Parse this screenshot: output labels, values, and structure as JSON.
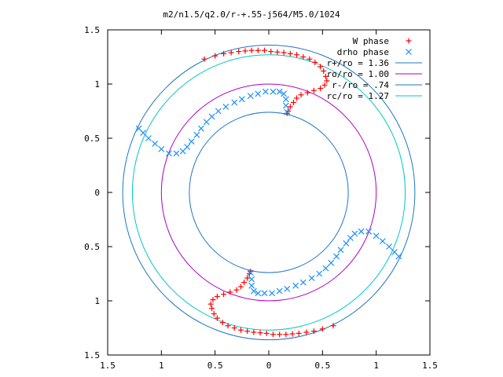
{
  "chart_data": {
    "type": "scatter",
    "title": "m2/n1.5/q2.0/r-+.55-j564/M5.0/1024",
    "xlabel": "",
    "ylabel": "",
    "xlim": [
      -1.5,
      1.5
    ],
    "ylim": [
      -1.5,
      1.5
    ],
    "grid": false,
    "legend_position": "top-right",
    "x_ticks": [
      {
        "value": -1.5,
        "label": "1.5"
      },
      {
        "value": -1.0,
        "label": "1"
      },
      {
        "value": -0.5,
        "label": "0.5"
      },
      {
        "value": 0,
        "label": "0"
      },
      {
        "value": 0.5,
        "label": "0.5"
      },
      {
        "value": 1.0,
        "label": "1"
      },
      {
        "value": 1.5,
        "label": "1.5"
      }
    ],
    "y_ticks": [
      {
        "value": 1.5,
        "label": "1.5"
      },
      {
        "value": 1.0,
        "label": "1"
      },
      {
        "value": 0.5,
        "label": "0.5"
      },
      {
        "value": 0,
        "label": "0"
      },
      {
        "value": -0.5,
        "label": "0.5"
      },
      {
        "value": -1.0,
        "label": "1"
      },
      {
        "value": -1.5,
        "label": "1.5"
      }
    ],
    "series": [
      {
        "name": "W phase",
        "marker": "plus",
        "color": "#ff0000",
        "points": [
          [
            -0.6,
            1.23
          ],
          [
            -0.5,
            1.26
          ],
          [
            -0.42,
            1.28
          ],
          [
            -0.35,
            1.29
          ],
          [
            -0.28,
            1.3
          ],
          [
            -0.22,
            1.305
          ],
          [
            -0.16,
            1.31
          ],
          [
            -0.1,
            1.31
          ],
          [
            -0.04,
            1.31
          ],
          [
            0.02,
            1.3
          ],
          [
            0.08,
            1.295
          ],
          [
            0.14,
            1.29
          ],
          [
            0.2,
            1.28
          ],
          [
            0.26,
            1.27
          ],
          [
            0.32,
            1.25
          ],
          [
            0.38,
            1.23
          ],
          [
            0.43,
            1.2
          ],
          [
            0.48,
            1.16
          ],
          [
            0.51,
            1.12
          ],
          [
            0.53,
            1.07
          ],
          [
            0.54,
            1.03
          ],
          [
            0.52,
            0.99
          ],
          [
            0.48,
            0.96
          ],
          [
            0.42,
            0.94
          ],
          [
            0.36,
            0.92
          ],
          [
            0.3,
            0.9
          ],
          [
            0.26,
            0.87
          ],
          [
            0.23,
            0.83
          ],
          [
            0.2,
            0.79
          ],
          [
            0.18,
            0.75
          ],
          [
            0.17,
            0.73
          ],
          [
            0.6,
            -1.23
          ],
          [
            0.5,
            -1.26
          ],
          [
            0.42,
            -1.28
          ],
          [
            0.35,
            -1.29
          ],
          [
            0.28,
            -1.3
          ],
          [
            0.22,
            -1.305
          ],
          [
            0.16,
            -1.31
          ],
          [
            0.1,
            -1.31
          ],
          [
            0.04,
            -1.31
          ],
          [
            -0.02,
            -1.3
          ],
          [
            -0.08,
            -1.295
          ],
          [
            -0.14,
            -1.29
          ],
          [
            -0.2,
            -1.28
          ],
          [
            -0.26,
            -1.27
          ],
          [
            -0.32,
            -1.25
          ],
          [
            -0.38,
            -1.23
          ],
          [
            -0.43,
            -1.2
          ],
          [
            -0.48,
            -1.16
          ],
          [
            -0.51,
            -1.12
          ],
          [
            -0.53,
            -1.07
          ],
          [
            -0.54,
            -1.03
          ],
          [
            -0.52,
            -0.99
          ],
          [
            -0.48,
            -0.96
          ],
          [
            -0.42,
            -0.94
          ],
          [
            -0.36,
            -0.92
          ],
          [
            -0.3,
            -0.9
          ],
          [
            -0.26,
            -0.87
          ],
          [
            -0.23,
            -0.83
          ],
          [
            -0.2,
            -0.79
          ],
          [
            -0.18,
            -0.75
          ],
          [
            -0.17,
            -0.73
          ]
        ]
      },
      {
        "name": "drho phase",
        "marker": "cross",
        "color": "#1e90ff",
        "points": [
          [
            0.17,
            0.74
          ],
          [
            0.16,
            0.8
          ],
          [
            0.16,
            0.86
          ],
          [
            0.14,
            0.91
          ],
          [
            0.1,
            0.93
          ],
          [
            0.04,
            0.93
          ],
          [
            -0.03,
            0.93
          ],
          [
            -0.1,
            0.91
          ],
          [
            -0.17,
            0.89
          ],
          [
            -0.25,
            0.86
          ],
          [
            -0.32,
            0.83
          ],
          [
            -0.4,
            0.79
          ],
          [
            -0.47,
            0.75
          ],
          [
            -0.53,
            0.7
          ],
          [
            -0.58,
            0.65
          ],
          [
            -0.63,
            0.59
          ],
          [
            -0.67,
            0.53
          ],
          [
            -0.72,
            0.47
          ],
          [
            -0.76,
            0.42
          ],
          [
            -0.8,
            0.38
          ],
          [
            -0.86,
            0.36
          ],
          [
            -0.93,
            0.36
          ],
          [
            -1.0,
            0.4
          ],
          [
            -1.06,
            0.45
          ],
          [
            -1.12,
            0.5
          ],
          [
            -1.17,
            0.55
          ],
          [
            -1.21,
            0.59
          ],
          [
            -0.17,
            -0.74
          ],
          [
            -0.16,
            -0.8
          ],
          [
            -0.16,
            -0.86
          ],
          [
            -0.14,
            -0.91
          ],
          [
            -0.1,
            -0.93
          ],
          [
            -0.04,
            -0.93
          ],
          [
            0.03,
            -0.93
          ],
          [
            0.1,
            -0.91
          ],
          [
            0.17,
            -0.89
          ],
          [
            0.25,
            -0.86
          ],
          [
            0.32,
            -0.83
          ],
          [
            0.4,
            -0.79
          ],
          [
            0.47,
            -0.75
          ],
          [
            0.53,
            -0.7
          ],
          [
            0.58,
            -0.65
          ],
          [
            0.63,
            -0.59
          ],
          [
            0.67,
            -0.53
          ],
          [
            0.72,
            -0.47
          ],
          [
            0.76,
            -0.42
          ],
          [
            0.8,
            -0.38
          ],
          [
            0.86,
            -0.36
          ],
          [
            0.93,
            -0.36
          ],
          [
            1.0,
            -0.4
          ],
          [
            1.06,
            -0.45
          ],
          [
            1.12,
            -0.5
          ],
          [
            1.17,
            -0.55
          ],
          [
            1.21,
            -0.59
          ]
        ]
      }
    ],
    "circles": [
      {
        "name": "r+/ro = 1.36",
        "radius": 1.36,
        "color": "#1f77c4"
      },
      {
        "name": "ro/ro = 1.00",
        "radius": 1.0,
        "color": "#b000c0"
      },
      {
        "name": "r-/ro = .74",
        "radius": 0.74,
        "color": "#1f77c4"
      },
      {
        "name": "rc/ro = 1.27",
        "radius": 1.27,
        "color": "#00c8c8"
      }
    ]
  }
}
